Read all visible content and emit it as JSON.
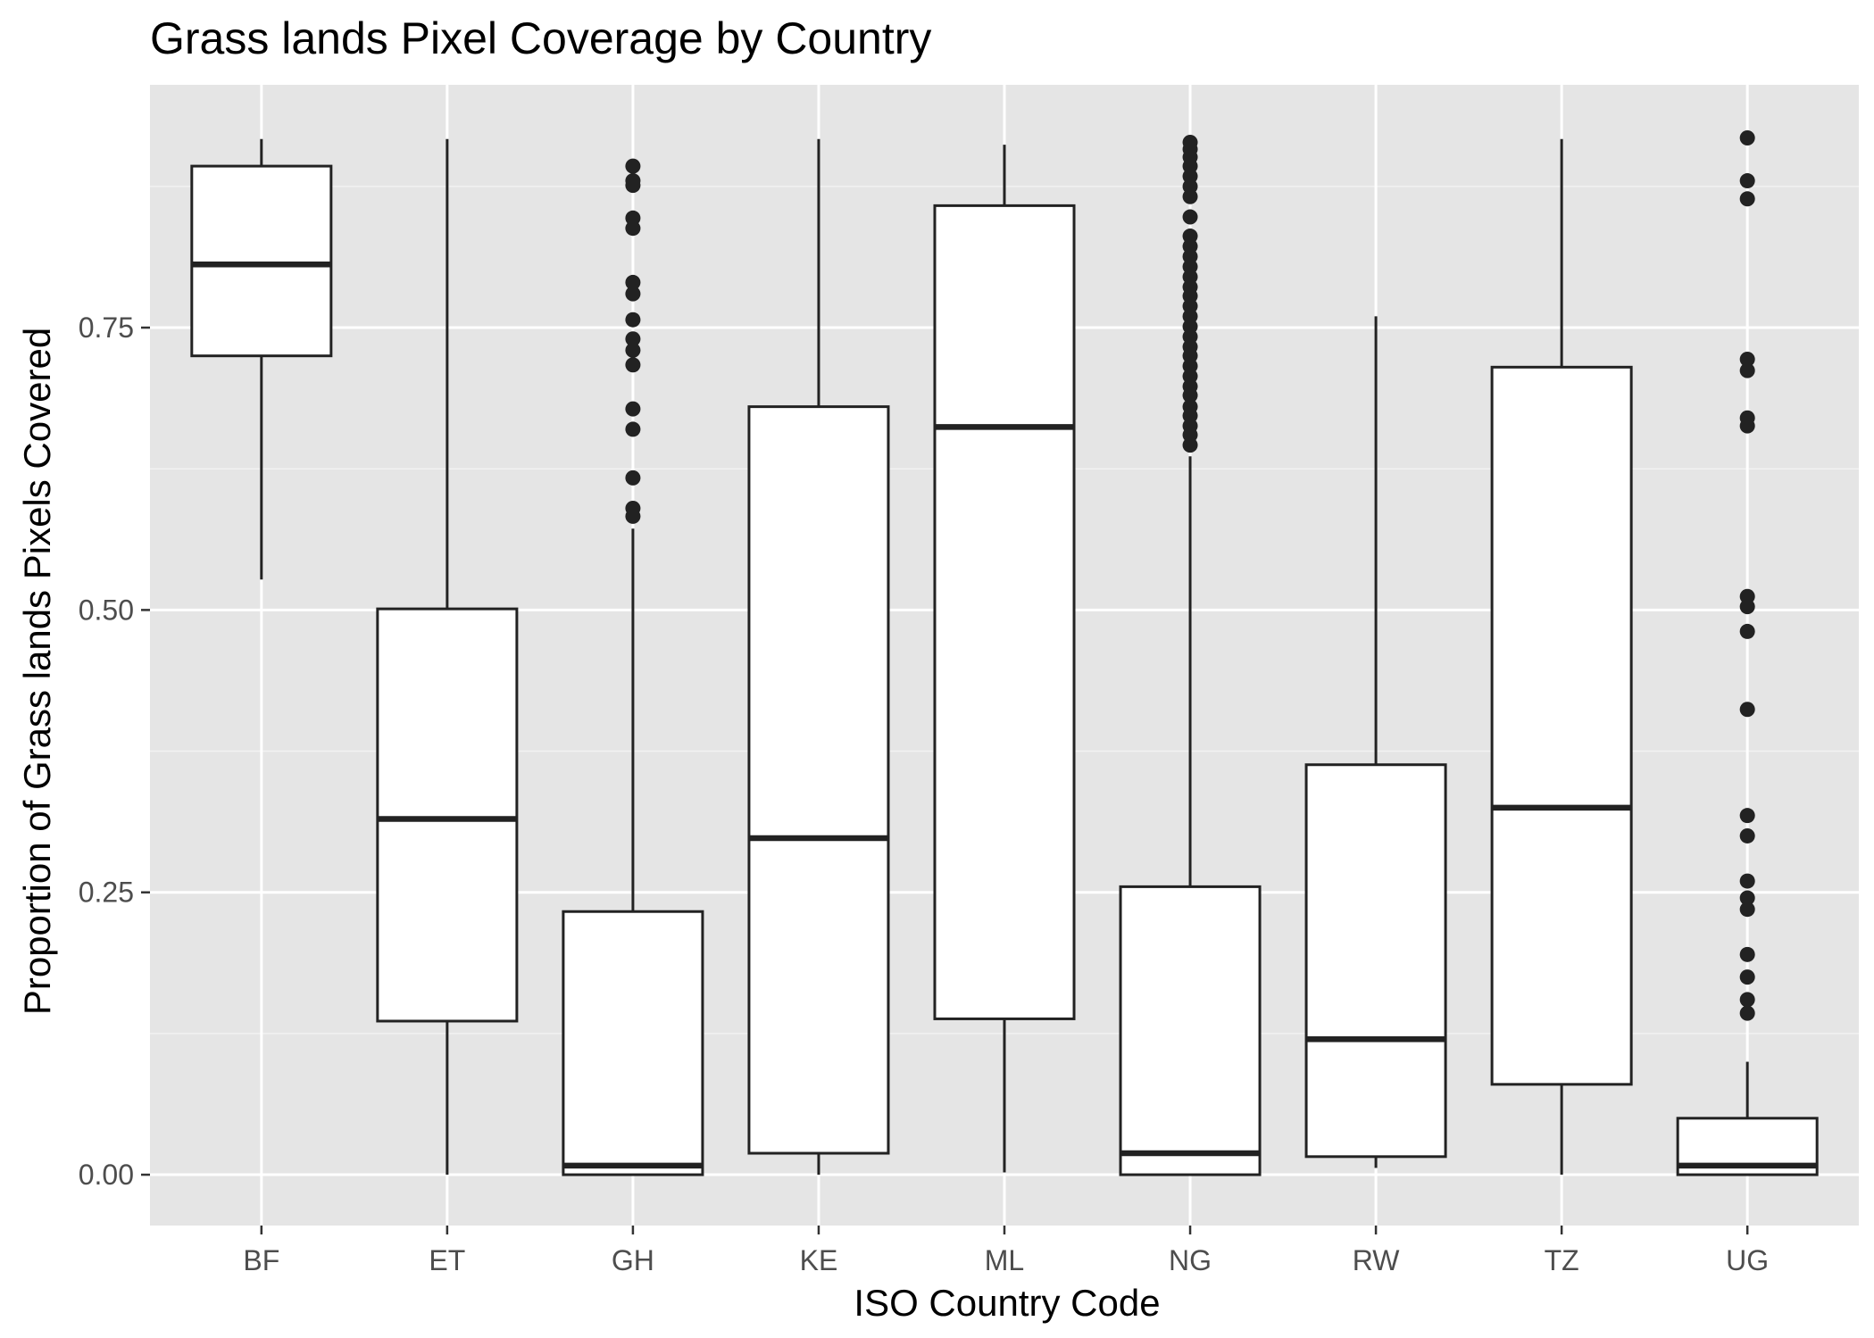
{
  "chart_data": {
    "type": "boxplot",
    "title": "Grass lands Pixel Coverage by Country",
    "xlabel": "ISO Country Code",
    "ylabel": "Proportion of Grass lands Pixels Covered",
    "ylim": [
      -0.045,
      0.965
    ],
    "yticks": [
      0.0,
      0.25,
      0.5,
      0.75
    ],
    "ytick_labels": [
      "0.00",
      "0.25",
      "0.50",
      "0.75"
    ],
    "grid": true,
    "categories": [
      "BF",
      "ET",
      "GH",
      "KE",
      "ML",
      "NG",
      "RW",
      "TZ",
      "UG"
    ],
    "boxes": [
      {
        "category": "BF",
        "whisker_low": 0.527,
        "q1": 0.725,
        "median": 0.806,
        "q3": 0.893,
        "whisker_high": 0.917,
        "outliers": []
      },
      {
        "category": "ET",
        "whisker_low": 0.0,
        "q1": 0.136,
        "median": 0.315,
        "q3": 0.501,
        "whisker_high": 0.917,
        "outliers": []
      },
      {
        "category": "GH",
        "whisker_low": 0.0,
        "q1": 0.0,
        "median": 0.008,
        "q3": 0.233,
        "whisker_high": 0.572,
        "outliers": [
          0.583,
          0.59,
          0.617,
          0.66,
          0.678,
          0.717,
          0.73,
          0.74,
          0.757,
          0.78,
          0.79,
          0.838,
          0.847,
          0.876,
          0.88,
          0.893
        ]
      },
      {
        "category": "KE",
        "whisker_low": 0.0,
        "q1": 0.019,
        "median": 0.298,
        "q3": 0.68,
        "whisker_high": 0.917,
        "outliers": []
      },
      {
        "category": "ML",
        "whisker_low": 0.002,
        "q1": 0.138,
        "median": 0.662,
        "q3": 0.858,
        "whisker_high": 0.912,
        "outliers": []
      },
      {
        "category": "NG",
        "whisker_low": 0.0,
        "q1": 0.0,
        "median": 0.019,
        "q3": 0.255,
        "whisker_high": 0.636,
        "outliers": [
          0.646,
          0.655,
          0.663,
          0.672,
          0.68,
          0.69,
          0.698,
          0.707,
          0.716,
          0.725,
          0.733,
          0.742,
          0.751,
          0.76,
          0.769,
          0.778,
          0.786,
          0.795,
          0.804,
          0.813,
          0.822,
          0.831,
          0.848,
          0.866,
          0.875,
          0.884,
          0.893,
          0.901,
          0.908,
          0.914
        ]
      },
      {
        "category": "RW",
        "whisker_low": 0.006,
        "q1": 0.016,
        "median": 0.12,
        "q3": 0.363,
        "whisker_high": 0.76,
        "outliers": []
      },
      {
        "category": "TZ",
        "whisker_low": 0.0,
        "q1": 0.08,
        "median": 0.325,
        "q3": 0.715,
        "whisker_high": 0.917,
        "outliers": []
      },
      {
        "category": "UG",
        "whisker_low": 0.0,
        "q1": 0.0,
        "median": 0.008,
        "q3": 0.05,
        "whisker_high": 0.1,
        "outliers": [
          0.143,
          0.155,
          0.175,
          0.195,
          0.235,
          0.245,
          0.26,
          0.3,
          0.318,
          0.412,
          0.481,
          0.503,
          0.512,
          0.663,
          0.67,
          0.712,
          0.722,
          0.864,
          0.88,
          0.918
        ]
      }
    ]
  },
  "colors": {
    "panel_background": "#e5e5e5",
    "grid_major": "#ffffff",
    "grid_minor": "#f2f2f2",
    "box_fill": "#ffffff",
    "box_stroke": "#222222",
    "outlier": "#222222",
    "tick_label": "#4d4d4d"
  }
}
